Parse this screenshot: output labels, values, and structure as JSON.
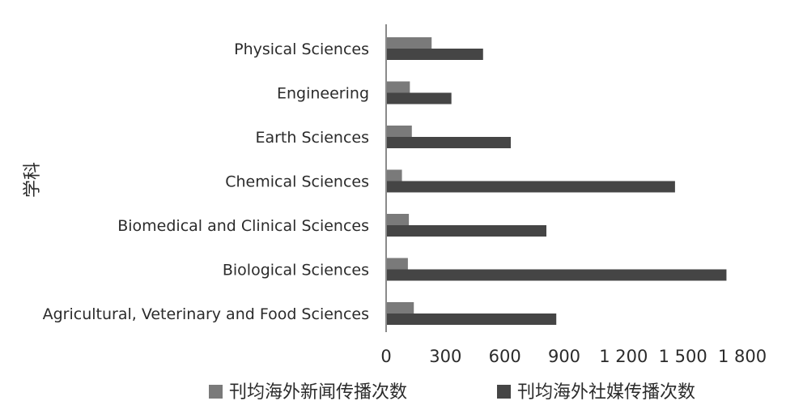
{
  "chart_data": {
    "type": "bar",
    "orientation": "horizontal",
    "ylabel": "学科",
    "xlabel": "",
    "categories": [
      "Physical Sciences",
      "Engineering",
      "Earth Sciences",
      "Chemical Sciences",
      "Biomedical and Clinical Sciences",
      "Biological Sciences",
      "Agricultural, Veterinary and Food  Sciences"
    ],
    "series": [
      {
        "name": "刊均海外新闻传播次数",
        "color": "#7a7a7a",
        "values": [
          230,
          120,
          130,
          80,
          115,
          110,
          140
        ]
      },
      {
        "name": "刊均海外社媒传播次数",
        "color": "#454545",
        "values": [
          490,
          330,
          630,
          1460,
          810,
          1720,
          860
        ]
      }
    ],
    "xlim": [
      0,
      1800
    ],
    "xticks": [
      0,
      300,
      600,
      900,
      1200,
      1500,
      1800
    ],
    "xtick_labels": [
      "0",
      "300",
      "600",
      "900",
      "1 200",
      "1 500",
      "1 800"
    ],
    "grid": false,
    "legend_position": "bottom"
  }
}
